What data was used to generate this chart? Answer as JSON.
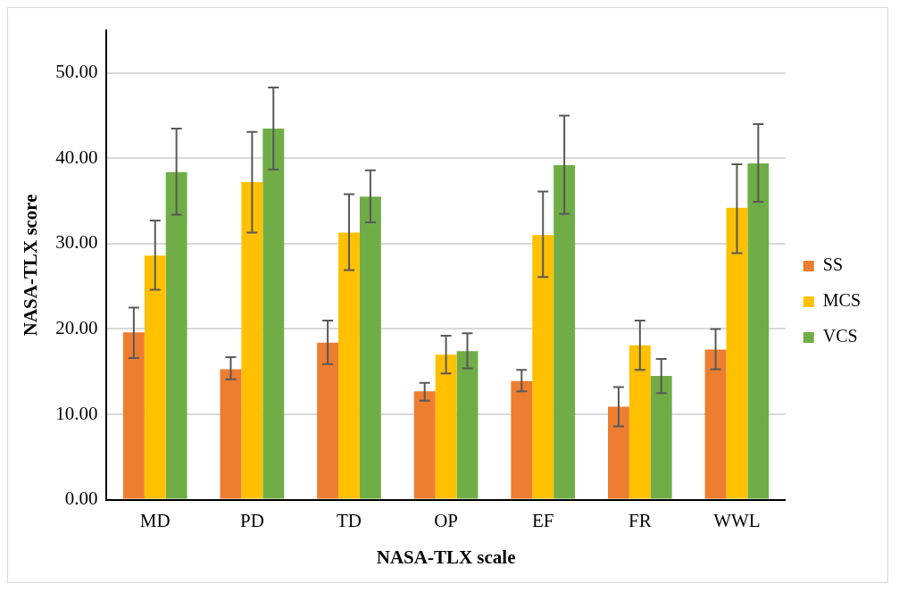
{
  "chart_data": {
    "type": "bar",
    "xlabel": "NASA-TLX scale",
    "ylabel": "NASA-TLX score",
    "categories": [
      "MD",
      "PD",
      "TD",
      "OP",
      "EF",
      "FR",
      "WWL"
    ],
    "series": [
      {
        "name": "SS",
        "color": "#ed7d31",
        "values": [
          19.6,
          15.3,
          18.4,
          12.7,
          13.9,
          10.9,
          17.6
        ],
        "errors": [
          [
            16.6,
            22.5
          ],
          [
            14.1,
            16.7
          ],
          [
            15.9,
            21.0
          ],
          [
            11.6,
            13.7
          ],
          [
            12.7,
            15.2
          ],
          [
            8.6,
            13.2
          ],
          [
            15.3,
            20.0
          ]
        ]
      },
      {
        "name": "MCS",
        "color": "#ffc000",
        "values": [
          28.6,
          37.2,
          31.3,
          17.0,
          31.0,
          18.1,
          34.2
        ],
        "errors": [
          [
            24.6,
            32.7
          ],
          [
            31.3,
            43.1
          ],
          [
            26.9,
            35.8
          ],
          [
            14.8,
            19.2
          ],
          [
            26.1,
            36.1
          ],
          [
            15.2,
            21.0
          ],
          [
            28.9,
            39.3
          ]
        ]
      },
      {
        "name": "VCS",
        "color": "#70ad47",
        "values": [
          38.4,
          43.5,
          35.5,
          17.4,
          39.2,
          14.5,
          39.4
        ],
        "errors": [
          [
            33.4,
            43.5
          ],
          [
            38.7,
            48.3
          ],
          [
            32.5,
            38.6
          ],
          [
            15.4,
            19.5
          ],
          [
            33.5,
            45.0
          ],
          [
            12.5,
            16.5
          ],
          [
            34.9,
            44.0
          ]
        ]
      }
    ],
    "ylim": [
      0,
      55
    ],
    "yticks": [
      {
        "value": 0,
        "label": "0.00"
      },
      {
        "value": 10,
        "label": "10.00"
      },
      {
        "value": 20,
        "label": "20.00"
      },
      {
        "value": 30,
        "label": "30.00"
      },
      {
        "value": 40,
        "label": "40.00"
      },
      {
        "value": 50,
        "label": "50.00"
      }
    ],
    "grid": "y",
    "legend": "right"
  }
}
